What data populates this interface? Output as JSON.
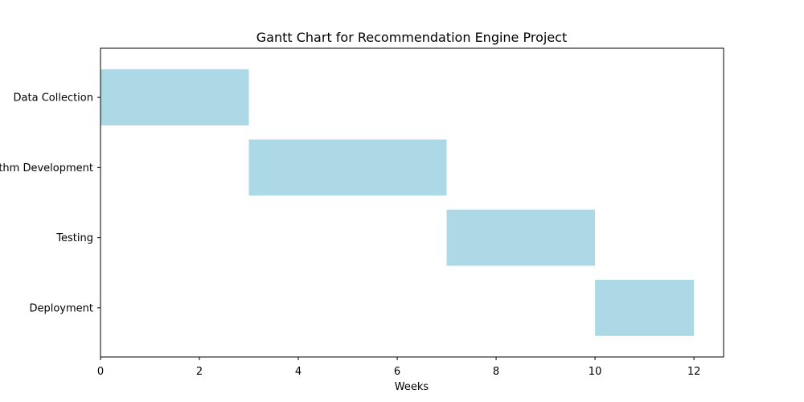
{
  "chart_data": {
    "type": "bar",
    "orientation": "horizontal",
    "title": "Gantt Chart for Recommendation Engine Project",
    "xlabel": "Weeks",
    "ylabel": "",
    "xlim": [
      0,
      12.6
    ],
    "xticks": [
      0,
      2,
      4,
      6,
      8,
      10,
      12
    ],
    "grid": false,
    "bar_color": "#add8e6",
    "tasks": [
      {
        "label": "Data Collection",
        "start": 0,
        "end": 3
      },
      {
        "label": "Algorithm Development",
        "start": 3,
        "end": 7
      },
      {
        "label": "Testing",
        "start": 7,
        "end": 10
      },
      {
        "label": "Deployment",
        "start": 10,
        "end": 12
      }
    ]
  }
}
